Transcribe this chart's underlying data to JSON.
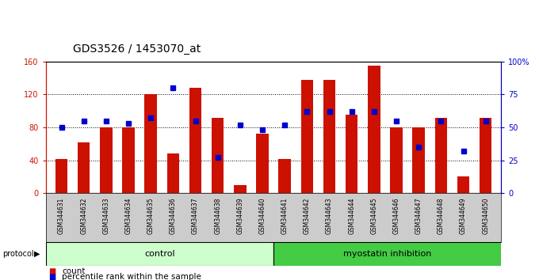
{
  "title": "GDS3526 / 1453070_at",
  "samples": [
    "GSM344631",
    "GSM344632",
    "GSM344633",
    "GSM344634",
    "GSM344635",
    "GSM344636",
    "GSM344637",
    "GSM344638",
    "GSM344639",
    "GSM344640",
    "GSM344641",
    "GSM344642",
    "GSM344643",
    "GSM344644",
    "GSM344645",
    "GSM344646",
    "GSM344647",
    "GSM344648",
    "GSM344649",
    "GSM344650"
  ],
  "counts": [
    42,
    62,
    80,
    80,
    120,
    48,
    128,
    92,
    10,
    72,
    42,
    138,
    138,
    95,
    155,
    80,
    80,
    92,
    20,
    92
  ],
  "percentile_ranks": [
    50,
    55,
    55,
    53,
    57,
    80,
    55,
    27,
    52,
    48,
    52,
    62,
    62,
    62,
    62,
    55,
    35,
    55,
    32,
    55
  ],
  "control_count": 10,
  "groups": [
    "control",
    "myostatin inhibition"
  ],
  "group_color_light": "#ccffcc",
  "group_color_dark": "#44cc44",
  "bar_color": "#cc1100",
  "percentile_color": "#0000cc",
  "left_ylim": [
    0,
    160
  ],
  "right_ylim": [
    0,
    100
  ],
  "left_yticks": [
    0,
    40,
    80,
    120,
    160
  ],
  "right_yticks": [
    0,
    25,
    50,
    75,
    100
  ],
  "right_yticklabels": [
    "0",
    "25",
    "50",
    "75",
    "100%"
  ],
  "grid_yticks": [
    40,
    80,
    120
  ],
  "xtick_bg_color": "#cccccc",
  "bg_color": "#ffffff",
  "legend_count_label": "count",
  "legend_pct_label": "percentile rank within the sample",
  "bar_width": 0.55,
  "title_fontsize": 10,
  "tick_fontsize": 7,
  "xtick_fontsize": 5.5,
  "group_fontsize": 8,
  "legend_fontsize": 7.5
}
